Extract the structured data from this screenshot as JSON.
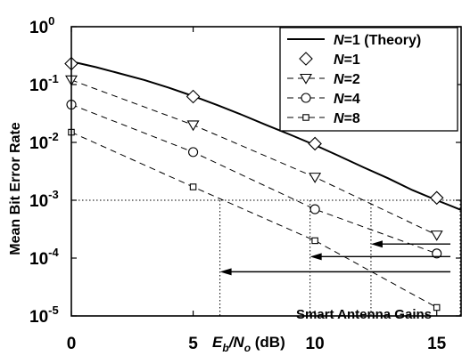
{
  "chart_data": {
    "type": "line",
    "title": "",
    "xlabel": {
      "base": "E",
      "base_sub": "b",
      "mid": "/N",
      "mid_sub": "o",
      "unit": " (dB)"
    },
    "ylabel": "Mean Bit Error Rate",
    "xlim": [
      0,
      16
    ],
    "ylim": [
      1e-05,
      1
    ],
    "yscale": "log",
    "grid": false,
    "legend_position": "top-right",
    "x_ticks": [
      0,
      5,
      10,
      15
    ],
    "x_tick_labels": [
      "0",
      "5",
      "10",
      "15"
    ],
    "y_ticks": [
      {
        "value": 1,
        "base": "10",
        "exp": "0"
      },
      {
        "value": 0.1,
        "base": "10",
        "exp": "-1"
      },
      {
        "value": 0.01,
        "base": "10",
        "exp": "-2"
      },
      {
        "value": 0.001,
        "base": "10",
        "exp": "-3"
      },
      {
        "value": 0.0001,
        "base": "10",
        "exp": "-4"
      },
      {
        "value": 1e-05,
        "base": "10",
        "exp": "-5"
      }
    ],
    "series": [
      {
        "name": {
          "italic": "N",
          "rest": "=1 (Theory)"
        },
        "style": "solid",
        "marker": "none",
        "x": [
          0,
          1,
          2,
          3,
          4,
          5,
          6,
          7,
          8,
          9,
          10,
          11,
          12,
          13,
          14,
          15,
          16
        ],
        "values": [
          0.25,
          0.2,
          0.155,
          0.12,
          0.088,
          0.063,
          0.044,
          0.03,
          0.02,
          0.0135,
          0.009,
          0.0058,
          0.0037,
          0.0024,
          0.0015,
          0.001,
          0.00068
        ]
      },
      {
        "name": {
          "italic": "N",
          "rest": "=1"
        },
        "style": "none",
        "marker": "diamond",
        "x": [
          0,
          5,
          10,
          15
        ],
        "values": [
          0.23,
          0.062,
          0.0095,
          0.0011
        ]
      },
      {
        "name": {
          "italic": "N",
          "rest": "=2"
        },
        "style": "dashed",
        "marker": "triangle-down",
        "x": [
          0,
          5,
          10,
          15
        ],
        "values": [
          0.12,
          0.02,
          0.0025,
          0.00025
        ]
      },
      {
        "name": {
          "italic": "N",
          "rest": "=4"
        },
        "style": "dashed",
        "marker": "circle",
        "x": [
          0,
          5,
          10,
          15
        ],
        "values": [
          0.045,
          0.0068,
          0.0007,
          0.00012
        ]
      },
      {
        "name": {
          "italic": "N",
          "rest": "=8"
        },
        "style": "dashed",
        "marker": "square",
        "x": [
          0,
          5,
          10,
          15
        ],
        "values": [
          0.015,
          0.0017,
          0.0002,
          1.4e-05
        ]
      }
    ],
    "reference_level": 0.001,
    "gain_arrows": [
      {
        "from_x": 16,
        "to_x": 12.3,
        "y": 0.000175
      },
      {
        "from_x": 16,
        "to_x": 9.8,
        "y": 0.000106
      },
      {
        "from_x": 16,
        "to_x": 6.1,
        "y": 5.8e-05
      }
    ],
    "annotation": "Smart Antenna Gains"
  }
}
